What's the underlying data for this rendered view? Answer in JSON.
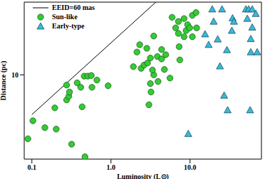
{
  "chart_data": {
    "type": "scatter",
    "xlabel": "Luminosity (L⊙)",
    "ylabel": "Distance (pc)",
    "log": true,
    "xlim": [
      0.08,
      80
    ],
    "ylim": [
      2.6,
      32
    ],
    "xticks": [
      0.1,
      {
        "value": 1,
        "label": "1.0"
      },
      {
        "value": 10,
        "label": "10.0"
      }
    ],
    "yticks": [
      10
    ],
    "legend": "upper left",
    "series": [
      {
        "name": "EEID=60 mas",
        "type": "line",
        "color": "#000000",
        "x": [
          0.1,
          3.7
        ],
        "values": [
          5.3,
          32
        ]
      },
      {
        "name": "Sun-like",
        "type": "scatter",
        "marker": "circle",
        "color": "#33cc33",
        "x": [
          0.089,
          0.103,
          0.146,
          0.195,
          0.203,
          0.275,
          0.275,
          0.293,
          0.299,
          0.318,
          0.374,
          0.415,
          0.459,
          0.469,
          0.509,
          0.575,
          0.432,
          0.564,
          0.664,
          0.921,
          1.92,
          2.13,
          2.31,
          2.41,
          2.62,
          2.84,
          2.9,
          3.15,
          3.48,
          3.48,
          3.35,
          3.86,
          3.94,
          4.37,
          4.37,
          4.74,
          4.93,
          5.58,
          5.93,
          6.58,
          7.13,
          7.13,
          7.28,
          7.43,
          8.4,
          8.4,
          8.93,
          9.31,
          9.9,
          10.7,
          10.7,
          11.9,
          12.1,
          3.15,
          3.21,
          3.02
        ],
        "values": [
          3.6,
          4.8,
          4.3,
          5.9,
          4.2,
          8.5,
          6.7,
          7.1,
          7.6,
          3.3,
          8.8,
          8.2,
          9.8,
          2.7,
          9.8,
          8.2,
          6.0,
          9.9,
          9.2,
          8.4,
          11.4,
          14.4,
          16.2,
          11.1,
          11.7,
          15.3,
          12.1,
          13.1,
          18.6,
          10.0,
          10.8,
          13.4,
          9.0,
          12.9,
          15.0,
          10.9,
          13.8,
          9.5,
          25.1,
          21.2,
          23.5,
          19.4,
          15.7,
          12.7,
          24.6,
          18.4,
          20.3,
          22.3,
          21.2,
          25.9,
          18.4,
          27.1,
          21.2,
          8.7,
          7.6,
          6.2
        ]
      },
      {
        "name": "Early-type",
        "type": "scatter",
        "marker": "triangle",
        "color": "#33bbdd",
        "x": [
          9.5,
          15.5,
          17.2,
          19.1,
          19.9,
          22.4,
          23.9,
          25.4,
          27,
          29.3,
          29.9,
          33.8,
          34.5,
          35.9,
          50.9,
          53,
          55.2,
          57.5,
          58.7,
          61.2,
          61.2,
          58.7,
          67.8,
          70.6
        ],
        "values": [
          3.9,
          19.2,
          16.2,
          28.6,
          23.5,
          17.7,
          11.5,
          28.6,
          7.2,
          14.9,
          5.7,
          20.3,
          24.8,
          23.5,
          28.6,
          24.6,
          28.6,
          5.7,
          17.8,
          28.6,
          21.4,
          14.4,
          26.6,
          14.4
        ]
      }
    ]
  }
}
